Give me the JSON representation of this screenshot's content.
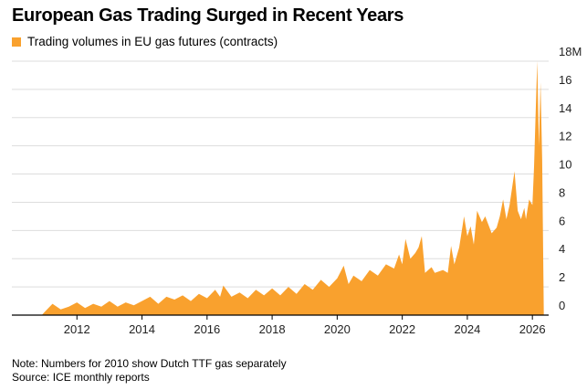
{
  "title": "European Gas Trading Surged in Recent Years",
  "legend_label": "Trading volumes in EU gas futures (contracts)",
  "note": "Note: Numbers for 2010 show Dutch TTF gas separately",
  "source": "Source: ICE monthly reports",
  "colors": {
    "area": "#f9a12e",
    "grid": "#dddddd",
    "axis": "#000000"
  },
  "chart_data": {
    "type": "area",
    "title": "European Gas Trading Surged in Recent Years",
    "series": [
      {
        "name": "Trading volumes in EU gas futures (contracts)"
      }
    ],
    "ylim": [
      0,
      18
    ],
    "y_unit": "M",
    "y_ticks": [
      {
        "value": 0,
        "label": "0"
      },
      {
        "value": 2,
        "label": "2"
      },
      {
        "value": 4,
        "label": "4"
      },
      {
        "value": 6,
        "label": "6"
      },
      {
        "value": 8,
        "label": "8"
      },
      {
        "value": 10,
        "label": "10"
      },
      {
        "value": 12,
        "label": "12"
      },
      {
        "value": 14,
        "label": "14"
      },
      {
        "value": 16,
        "label": "16"
      },
      {
        "value": 18,
        "label": "18M"
      }
    ],
    "xlim": [
      2010.0,
      2026.5
    ],
    "x_ticks": [
      {
        "value": 2012,
        "label": "2012"
      },
      {
        "value": 2014,
        "label": "2014"
      },
      {
        "value": 2016,
        "label": "2016"
      },
      {
        "value": 2018,
        "label": "2018"
      },
      {
        "value": 2020,
        "label": "2020"
      },
      {
        "value": 2022,
        "label": "2022"
      },
      {
        "value": 2024,
        "label": "2024"
      },
      {
        "value": 2026,
        "label": "2026"
      }
    ],
    "grid": true,
    "legend_position": "top-left",
    "points": [
      [
        2010.92,
        0.0
      ],
      [
        2011.0,
        0.2
      ],
      [
        2011.25,
        0.8
      ],
      [
        2011.5,
        0.4
      ],
      [
        2011.75,
        0.6
      ],
      [
        2012.0,
        0.9
      ],
      [
        2012.25,
        0.5
      ],
      [
        2012.5,
        0.8
      ],
      [
        2012.75,
        0.6
      ],
      [
        2013.0,
        1.0
      ],
      [
        2013.25,
        0.6
      ],
      [
        2013.5,
        0.9
      ],
      [
        2013.75,
        0.7
      ],
      [
        2014.0,
        1.0
      ],
      [
        2014.25,
        1.3
      ],
      [
        2014.5,
        0.8
      ],
      [
        2014.75,
        1.3
      ],
      [
        2015.0,
        1.1
      ],
      [
        2015.25,
        1.4
      ],
      [
        2015.5,
        1.0
      ],
      [
        2015.75,
        1.5
      ],
      [
        2016.0,
        1.2
      ],
      [
        2016.25,
        1.8
      ],
      [
        2016.4,
        1.3
      ],
      [
        2016.5,
        2.1
      ],
      [
        2016.75,
        1.3
      ],
      [
        2017.0,
        1.6
      ],
      [
        2017.25,
        1.2
      ],
      [
        2017.5,
        1.8
      ],
      [
        2017.75,
        1.4
      ],
      [
        2018.0,
        1.9
      ],
      [
        2018.25,
        1.4
      ],
      [
        2018.5,
        2.0
      ],
      [
        2018.75,
        1.5
      ],
      [
        2019.0,
        2.2
      ],
      [
        2019.25,
        1.8
      ],
      [
        2019.5,
        2.5
      ],
      [
        2019.75,
        2.0
      ],
      [
        2020.0,
        2.6
      ],
      [
        2020.2,
        3.5
      ],
      [
        2020.35,
        2.2
      ],
      [
        2020.5,
        2.8
      ],
      [
        2020.75,
        2.4
      ],
      [
        2021.0,
        3.2
      ],
      [
        2021.25,
        2.8
      ],
      [
        2021.5,
        3.6
      ],
      [
        2021.75,
        3.3
      ],
      [
        2021.9,
        4.3
      ],
      [
        2022.0,
        3.6
      ],
      [
        2022.1,
        5.4
      ],
      [
        2022.25,
        4.0
      ],
      [
        2022.4,
        4.4
      ],
      [
        2022.5,
        4.8
      ],
      [
        2022.6,
        5.6
      ],
      [
        2022.7,
        3.0
      ],
      [
        2022.9,
        3.4
      ],
      [
        2023.0,
        3.0
      ],
      [
        2023.25,
        3.2
      ],
      [
        2023.4,
        3.0
      ],
      [
        2023.5,
        4.9
      ],
      [
        2023.6,
        3.6
      ],
      [
        2023.75,
        4.8
      ],
      [
        2023.9,
        7.0
      ],
      [
        2024.0,
        5.6
      ],
      [
        2024.1,
        6.3
      ],
      [
        2024.2,
        5.0
      ],
      [
        2024.3,
        7.4
      ],
      [
        2024.45,
        6.6
      ],
      [
        2024.55,
        7.0
      ],
      [
        2024.75,
        5.8
      ],
      [
        2024.9,
        6.2
      ],
      [
        2025.0,
        7.0
      ],
      [
        2025.1,
        8.2
      ],
      [
        2025.2,
        6.8
      ],
      [
        2025.3,
        7.8
      ],
      [
        2025.45,
        10.2
      ],
      [
        2025.55,
        7.4
      ],
      [
        2025.65,
        6.8
      ],
      [
        2025.75,
        7.6
      ],
      [
        2025.8,
        6.8
      ],
      [
        2025.9,
        8.2
      ],
      [
        2026.0,
        7.8
      ],
      [
        2026.05,
        10.5
      ],
      [
        2026.1,
        14.2
      ],
      [
        2026.15,
        18.0
      ],
      [
        2026.2,
        12.0
      ],
      [
        2026.25,
        16.5
      ],
      [
        2026.3,
        11.0
      ],
      [
        2026.35,
        0.0
      ]
    ]
  }
}
